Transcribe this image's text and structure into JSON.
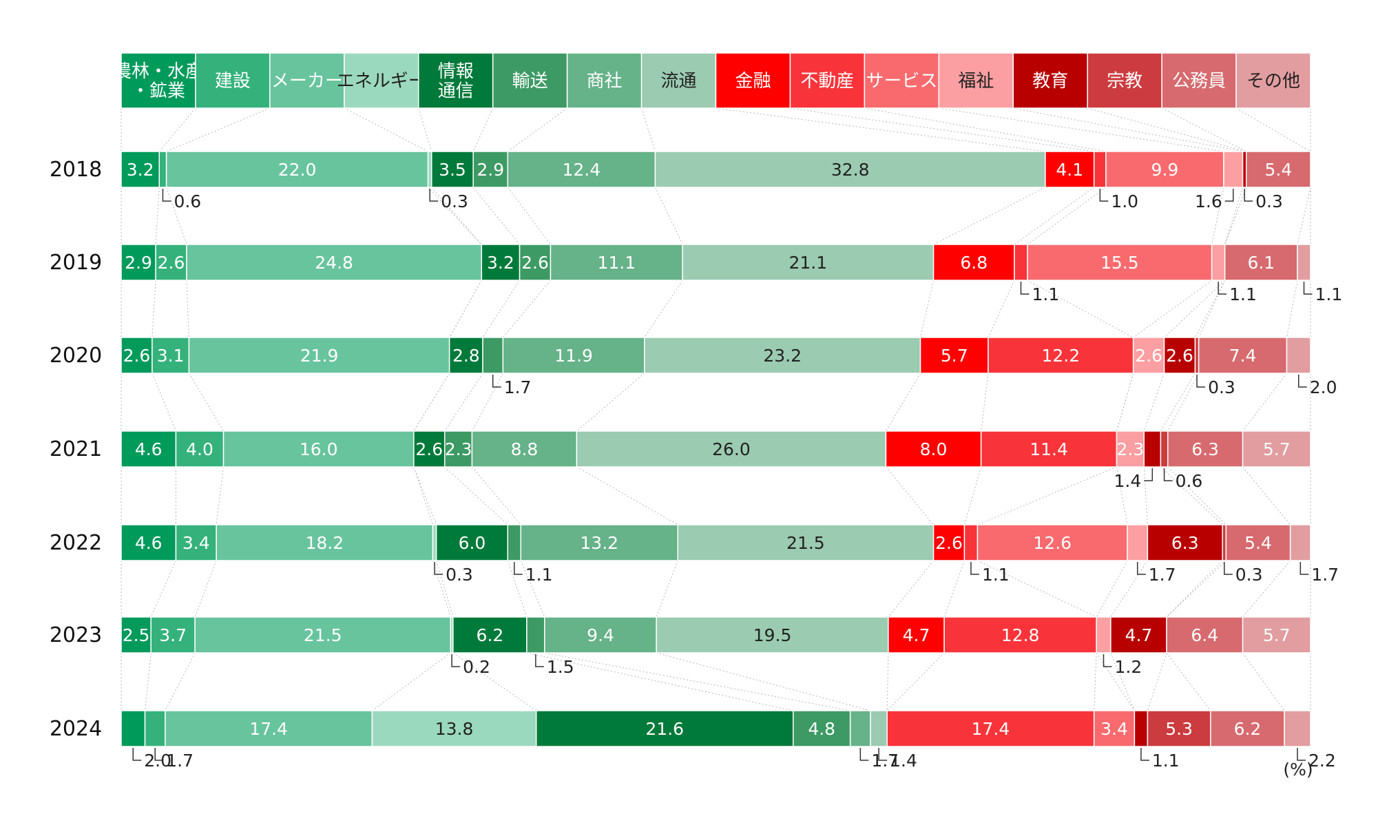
{
  "chart_data": {
    "type": "bar",
    "orientation": "horizontal",
    "stacked": "100%",
    "unit": "(%)",
    "legend_position": "top",
    "grid": false,
    "categories": [
      "2018",
      "2019",
      "2020",
      "2021",
      "2022",
      "2023",
      "2024"
    ],
    "series": [
      {
        "name": "農林・水産・鉱業",
        "color": "#009a5b",
        "values": [
          3.2,
          2.9,
          2.6,
          4.6,
          4.6,
          2.5,
          2.0
        ]
      },
      {
        "name": "建設",
        "color": "#35b27c",
        "values": [
          0.6,
          2.6,
          3.1,
          4.0,
          3.4,
          3.7,
          1.7
        ]
      },
      {
        "name": "メーカー",
        "color": "#68c49d",
        "values": [
          22.0,
          24.8,
          21.9,
          16.0,
          18.2,
          21.5,
          17.4
        ]
      },
      {
        "name": "エネルギー",
        "color": "#9bd9be",
        "values": [
          0.3,
          0.0,
          0.0,
          0.0,
          0.3,
          0.2,
          13.8
        ]
      },
      {
        "name": "情報\n通信",
        "color": "#007a3a",
        "values": [
          3.5,
          3.2,
          2.8,
          2.6,
          6.0,
          6.2,
          21.6
        ]
      },
      {
        "name": "輸送",
        "color": "#3d9a64",
        "values": [
          2.9,
          2.6,
          1.7,
          2.3,
          1.1,
          1.5,
          4.8
        ]
      },
      {
        "name": "商社",
        "color": "#66b289",
        "values": [
          12.4,
          11.1,
          11.9,
          8.8,
          13.2,
          9.4,
          1.7
        ]
      },
      {
        "name": "流通",
        "color": "#9bcbb1",
        "values": [
          32.8,
          21.1,
          23.2,
          26.0,
          21.5,
          19.5,
          1.4
        ]
      },
      {
        "name": "金融",
        "color": "#ff0000",
        "values": [
          4.1,
          6.8,
          5.7,
          8.0,
          2.6,
          4.7,
          0.0
        ]
      },
      {
        "name": "不動産",
        "color": "#f8343a",
        "values": [
          1.0,
          1.1,
          12.2,
          11.4,
          1.1,
          12.8,
          17.4
        ]
      },
      {
        "name": "サービス",
        "color": "#f96a6e",
        "values": [
          9.9,
          15.5,
          0.0,
          0.0,
          12.6,
          0.0,
          3.4
        ]
      },
      {
        "name": "福祉",
        "color": "#fb9fa2",
        "values": [
          1.6,
          1.1,
          2.6,
          2.3,
          1.7,
          1.2,
          0.0
        ]
      },
      {
        "name": "教育",
        "color": "#b90000",
        "values": [
          0.3,
          0.0,
          2.6,
          1.4,
          6.3,
          4.7,
          1.1
        ]
      },
      {
        "name": "宗教",
        "color": "#cc3b3f",
        "values": [
          0.0,
          0.0,
          0.3,
          0.6,
          0.3,
          0.0,
          5.3
        ]
      },
      {
        "name": "公務員",
        "color": "#d76a6e",
        "values": [
          5.4,
          6.1,
          7.4,
          6.3,
          5.4,
          6.4,
          6.2
        ]
      },
      {
        "name": "その他",
        "color": "#e29da0",
        "values": [
          0.0,
          1.1,
          2.0,
          5.7,
          1.7,
          5.7,
          2.2
        ]
      }
    ],
    "text_colors": {
      "dark": "#222222",
      "light": "#ffffff"
    },
    "legend_text_colors": [
      "#ffffff",
      "#ffffff",
      "#ffffff",
      "#222222",
      "#ffffff",
      "#ffffff",
      "#ffffff",
      "#222222",
      "#ffffff",
      "#ffffff",
      "#ffffff",
      "#222222",
      "#ffffff",
      "#ffffff",
      "#ffffff",
      "#222222"
    ]
  }
}
